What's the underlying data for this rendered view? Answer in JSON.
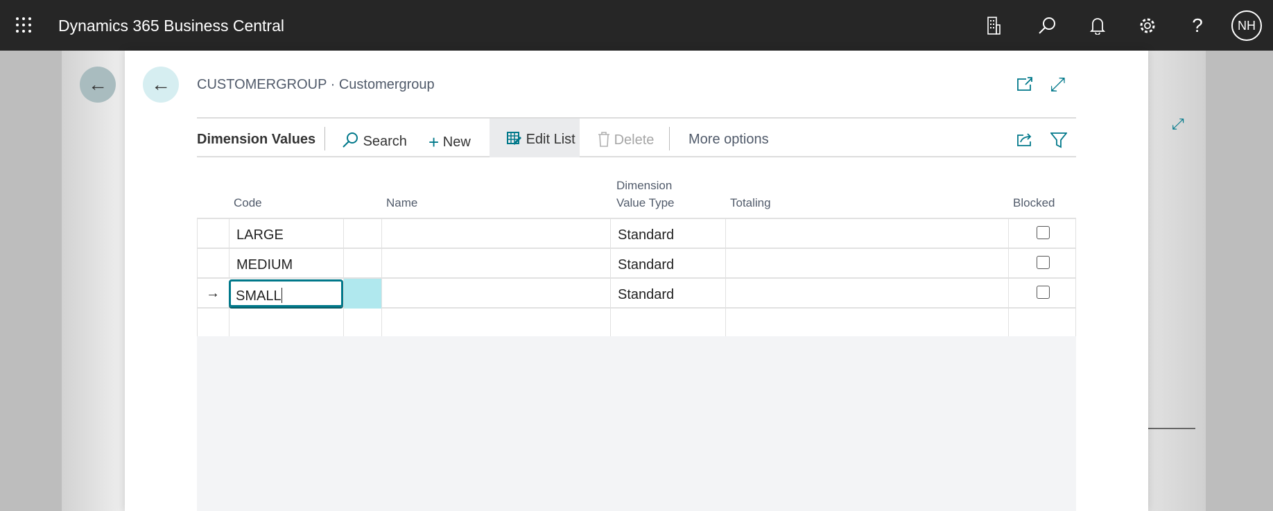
{
  "app": {
    "title": "Dynamics 365 Business Central",
    "user_initials": "NH",
    "icons": [
      "waffle-icon",
      "company-icon",
      "search-icon",
      "bell-icon",
      "gear-icon",
      "help-icon"
    ]
  },
  "page": {
    "breadcrumb": "CUSTOMERGROUP · Customergroup"
  },
  "actions": {
    "title": "Dimension Values",
    "search": "Search",
    "new": "New",
    "edit_list": "Edit List",
    "delete": "Delete",
    "more": "More options"
  },
  "columns": {
    "code": "Code",
    "name": "Name",
    "dvt_line1": "Dimension",
    "dvt_line2": "Value Type",
    "totaling": "Totaling",
    "blocked": "Blocked"
  },
  "rows": [
    {
      "code": "LARGE",
      "name": "",
      "type": "Standard",
      "totaling": "",
      "blocked": false
    },
    {
      "code": "MEDIUM",
      "name": "",
      "type": "Standard",
      "totaling": "",
      "blocked": false
    },
    {
      "code": "SMALL",
      "name": "",
      "type": "Standard",
      "totaling": "",
      "blocked": false,
      "current": true
    }
  ],
  "colors": {
    "accent": "#00788a",
    "topbar": "#262626",
    "selection": "#b0e8ee"
  }
}
